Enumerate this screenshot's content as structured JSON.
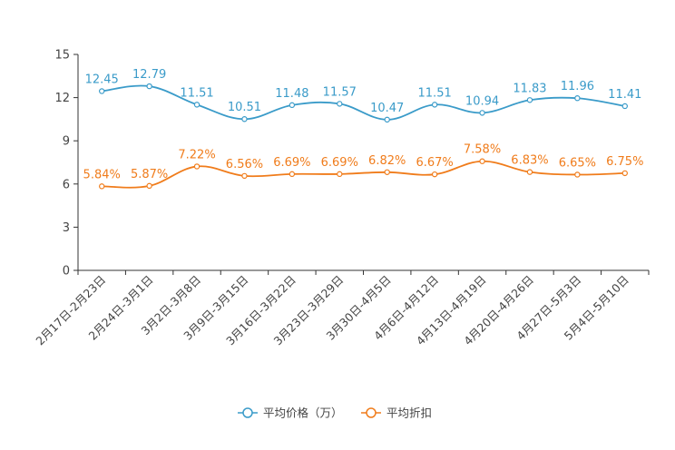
{
  "chart_data": {
    "type": "line",
    "title": "",
    "xlabel": "",
    "ylabel": "",
    "ylim": [
      0,
      15
    ],
    "yticks": [
      0,
      3,
      6,
      9,
      12,
      15
    ],
    "grid": false,
    "legend_position": "bottom-center",
    "categories": [
      "2月17日-2月23日",
      "2月24日-3月1日",
      "3月2日-3月8日",
      "3月9日-3月15日",
      "3月16日-3月22日",
      "3月23日-3月29日",
      "3月30日-4月5日",
      "4月6日-4月12日",
      "4月13日-4月19日",
      "4月20日-4月26日",
      "4月27日-5月3日",
      "5月4日-5月10日"
    ],
    "series": [
      {
        "name": "平均价格（万）",
        "color": "#3a9bc9",
        "values": [
          12.45,
          12.79,
          11.51,
          10.51,
          11.48,
          11.57,
          10.47,
          11.51,
          10.94,
          11.83,
          11.96,
          11.41
        ],
        "labels": [
          "12.45",
          "12.79",
          "11.51",
          "10.51",
          "11.48",
          "11.57",
          "10.47",
          "11.51",
          "10.94",
          "11.83",
          "11.96",
          "11.41"
        ]
      },
      {
        "name": "平均折扣",
        "color": "#f07c1b",
        "values": [
          5.84,
          5.87,
          7.22,
          6.56,
          6.69,
          6.69,
          6.82,
          6.67,
          7.58,
          6.83,
          6.65,
          6.75
        ],
        "labels": [
          "5.84%",
          "5.87%",
          "7.22%",
          "6.56%",
          "6.69%",
          "6.69%",
          "6.82%",
          "6.67%",
          "7.58%",
          "6.83%",
          "6.65%",
          "6.75%"
        ]
      }
    ]
  }
}
